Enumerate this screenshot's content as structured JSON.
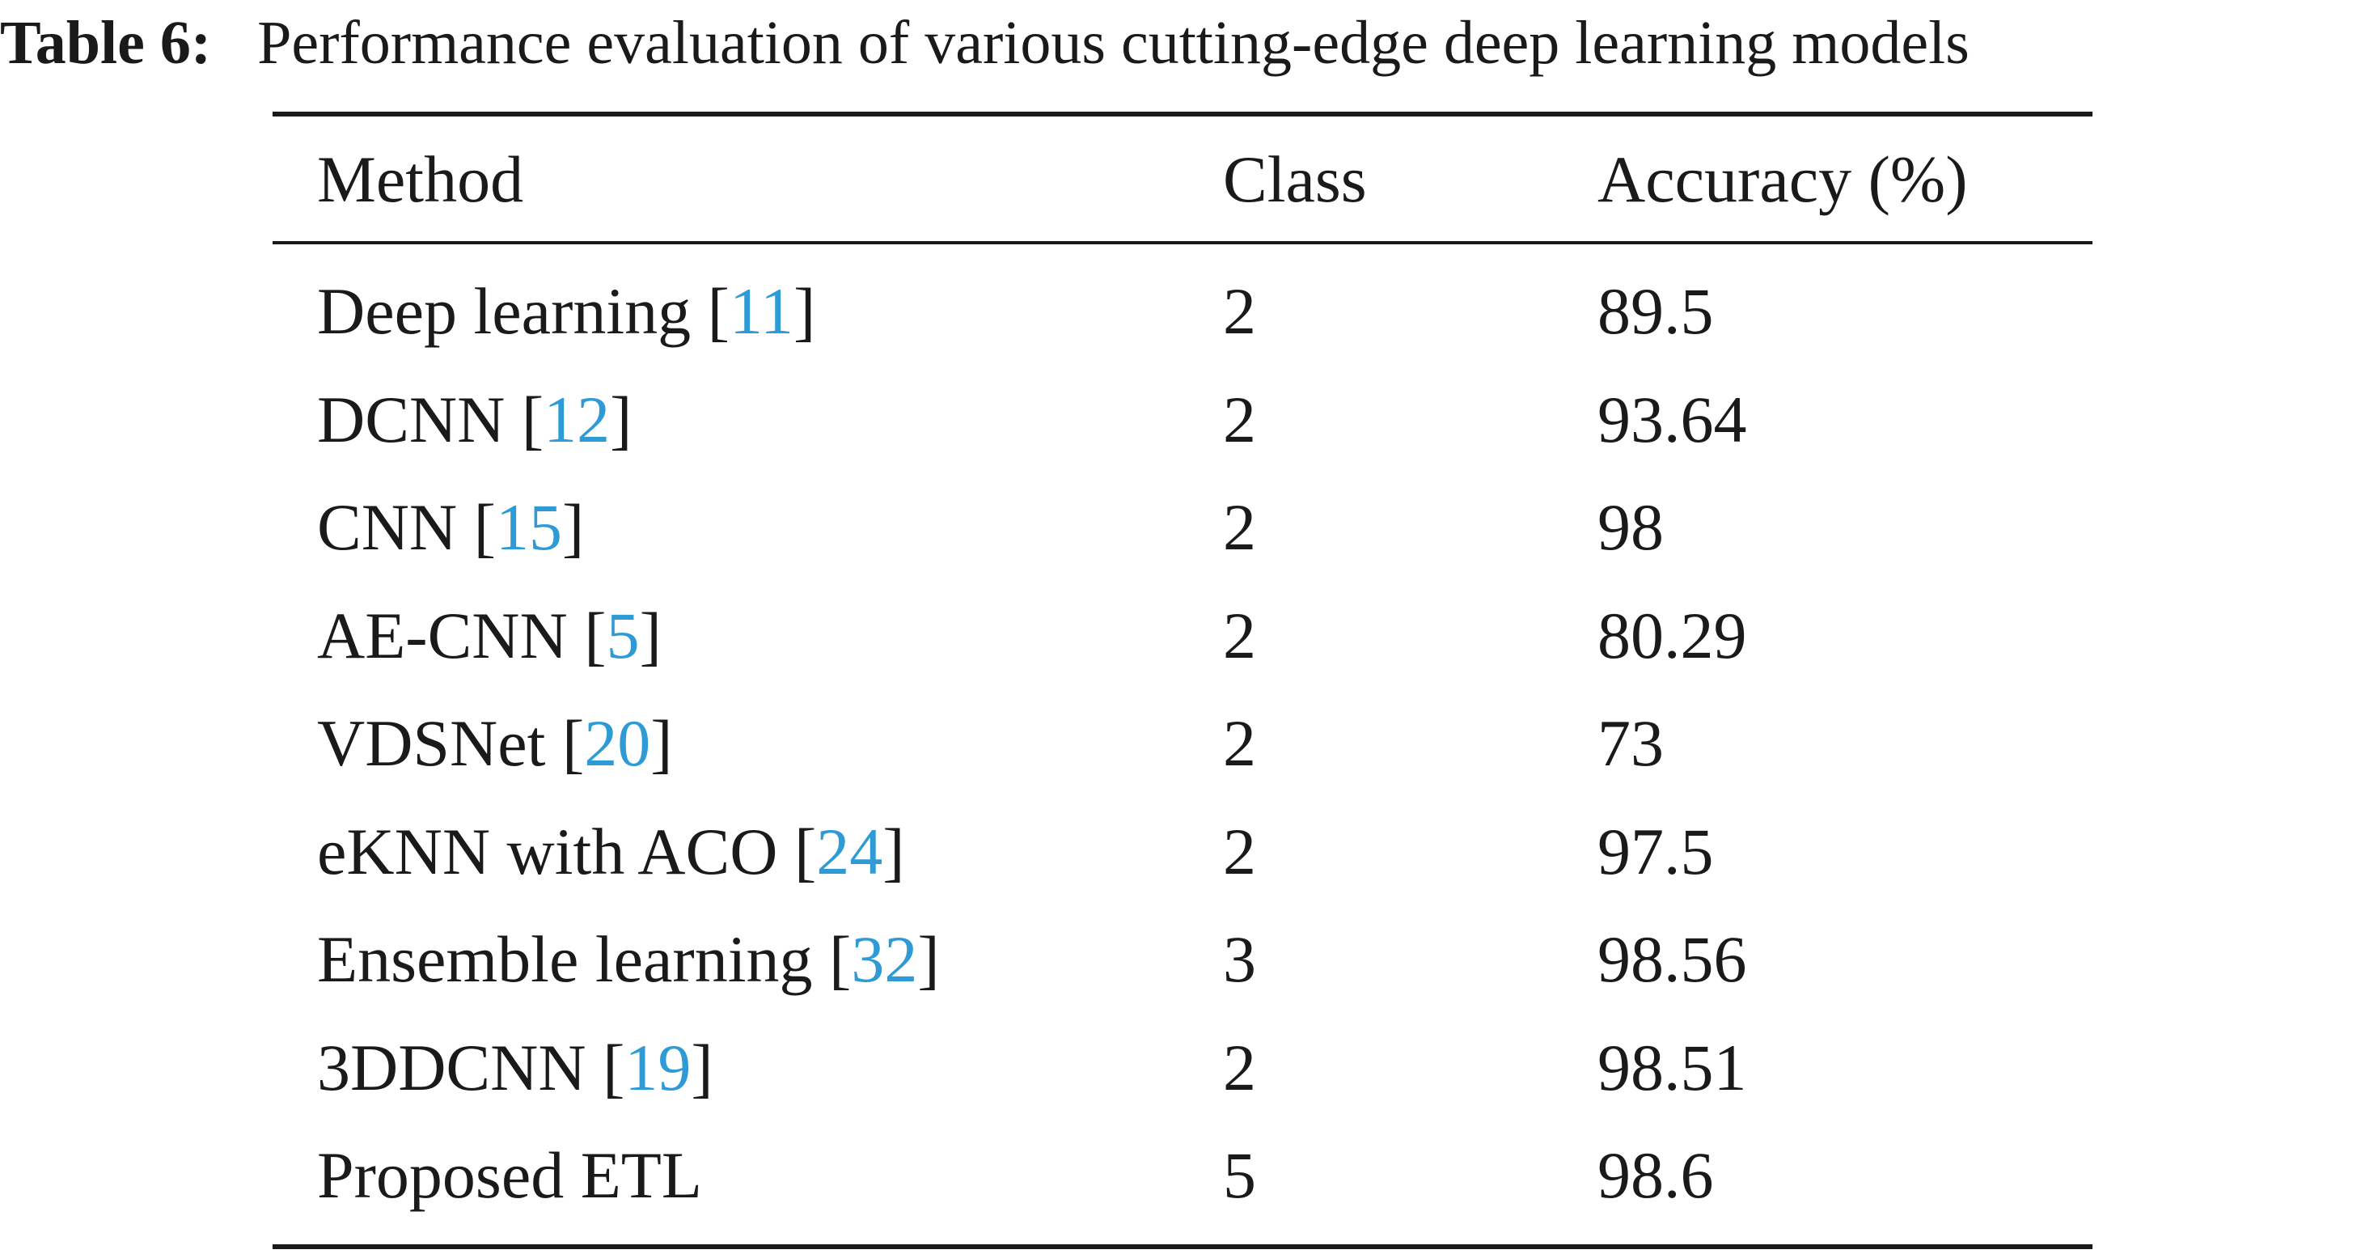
{
  "caption": {
    "label": "Table 6:",
    "text": "Performance evaluation of various cutting-edge deep learning models"
  },
  "table": {
    "headers": {
      "method": "Method",
      "class": "Class",
      "accuracy": "Accuracy (%)"
    },
    "rows": [
      {
        "method": "Deep learning",
        "ref": "11",
        "class": "2",
        "accuracy": "89.5"
      },
      {
        "method": "DCNN",
        "ref": "12",
        "class": "2",
        "accuracy": "93.64"
      },
      {
        "method": "CNN",
        "ref": "15",
        "class": "2",
        "accuracy": "98"
      },
      {
        "method": "AE-CNN",
        "ref": "5",
        "class": "2",
        "accuracy": "80.29"
      },
      {
        "method": "VDSNet",
        "ref": "20",
        "class": "2",
        "accuracy": "73"
      },
      {
        "method": "eKNN with ACO",
        "ref": "24",
        "class": "2",
        "accuracy": "97.5"
      },
      {
        "method": "Ensemble learning",
        "ref": "32",
        "class": "3",
        "accuracy": "98.56"
      },
      {
        "method": "3DDCNN",
        "ref": "19",
        "class": "2",
        "accuracy": "98.51"
      },
      {
        "method": "Proposed ETL",
        "ref": "",
        "class": "5",
        "accuracy": "98.6"
      }
    ]
  },
  "colors": {
    "text": "#1a1a1a",
    "reference_link": "#2f9bd6"
  }
}
